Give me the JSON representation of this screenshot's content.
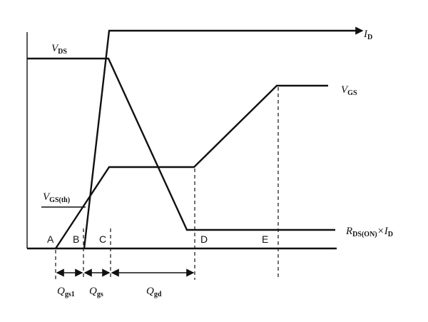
{
  "labels": {
    "id": {
      "main": "I",
      "sub": "D"
    },
    "vds": {
      "main": "V",
      "sub": "DS"
    },
    "vgs": {
      "main": "V",
      "sub": "GS"
    },
    "vgsth": {
      "main": "V",
      "sub": "GS(th)"
    },
    "rds": {
      "main": "R",
      "sub": "DS(ON)",
      "mid": "×I",
      "sub2": "D"
    },
    "points": [
      "A",
      "B",
      "C",
      "D",
      "E"
    ],
    "qgs1": {
      "main": "Q",
      "sub": "gs1"
    },
    "qgs": {
      "main": "Q",
      "sub": "gs"
    },
    "qgd": {
      "main": "Q",
      "sub": "gd"
    }
  }
}
